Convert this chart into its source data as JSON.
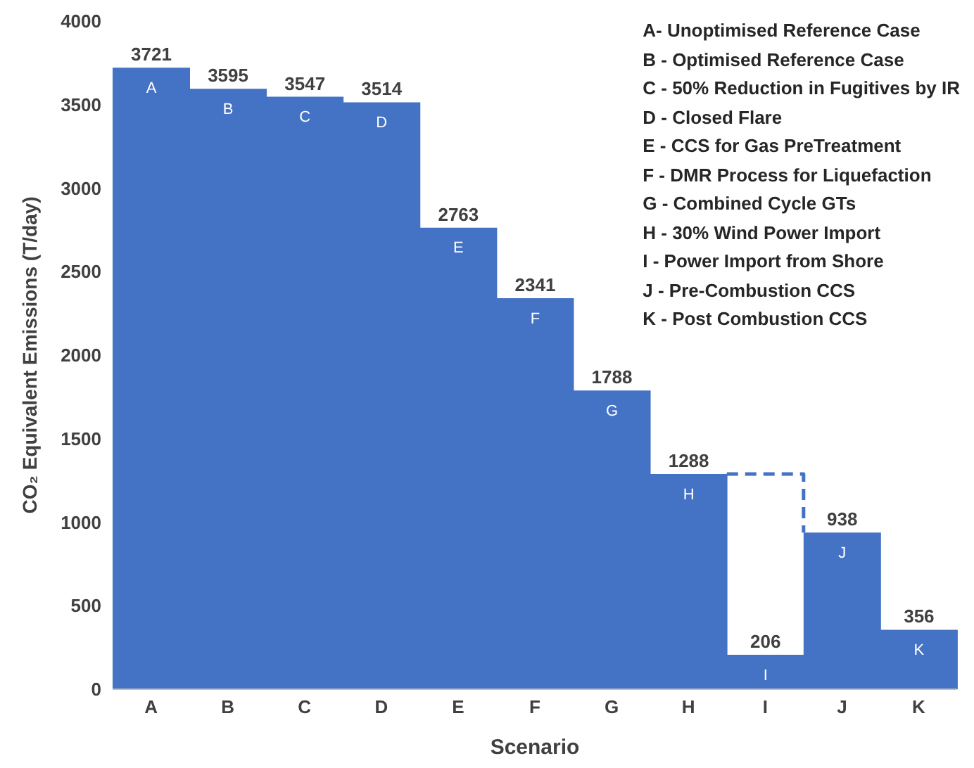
{
  "chart_data": {
    "type": "bar",
    "categories": [
      "A",
      "B",
      "C",
      "D",
      "E",
      "F",
      "G",
      "H",
      "I",
      "J",
      "K"
    ],
    "values": [
      3721,
      3595,
      3547,
      3514,
      2763,
      2341,
      1788,
      1288,
      206,
      938,
      356
    ],
    "color": "#4472c4",
    "xlabel": "Scenario",
    "ylabel": "CO₂ Equivalent Emissions (T/day)",
    "ylim": [
      0,
      4000
    ],
    "yticks": [
      0,
      500,
      1000,
      1500,
      2000,
      2500,
      3000,
      3500,
      4000
    ],
    "grid": false,
    "data_labels": true,
    "ref_lines": [
      {
        "axis": "y",
        "value": 1288,
        "color": "#4472c4",
        "line_style": "dashed"
      }
    ],
    "annotations": [
      "A- Unoptimised Reference Case",
      "B - Optimised Reference Case",
      "C - 50% Reduction in Fugitives by IR",
      "D - Closed Flare",
      "E - CCS for Gas PreTreatment",
      "F - DMR Process for Liquefaction",
      "G - Combined Cycle GTs",
      "H - 30% Wind Power Import",
      "I - Power Import from Shore",
      "J - Pre-Combustion CCS",
      "K - Post Combustion CCS"
    ]
  }
}
